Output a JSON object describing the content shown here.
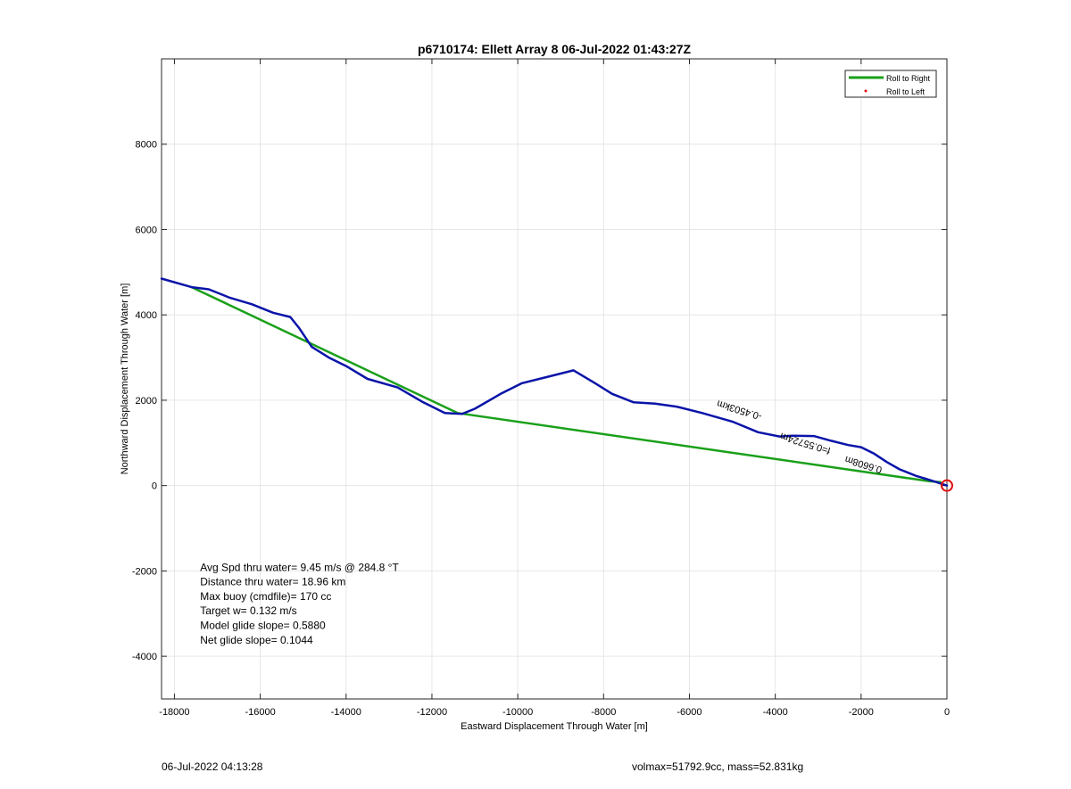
{
  "chart_data": {
    "type": "line",
    "title": "p6710174: Ellett Array 8 06-Jul-2022 01:43:27Z",
    "xlabel": "Eastward Displacement Through Water [m]",
    "ylabel": "Northward Displacement Through Water [m]",
    "xlim": [
      -18300,
      0
    ],
    "ylim": [
      -5000,
      10000
    ],
    "xticks": [
      -18000,
      -16000,
      -14000,
      -12000,
      -10000,
      -8000,
      -6000,
      -4000,
      -2000,
      0
    ],
    "yticks": [
      -4000,
      -2000,
      0,
      2000,
      4000,
      6000,
      8000
    ],
    "grid": true,
    "legend_position": "top-right",
    "legend": [
      {
        "label": "Roll to Right",
        "color": "#1aa01a",
        "style": "line"
      },
      {
        "label": "Roll to Left",
        "color": "#e01010",
        "style": "dot"
      }
    ],
    "series": [
      {
        "name": "Roll to Right",
        "color": "#1aa01a",
        "x": [
          -17600,
          -11400,
          -400,
          -150
        ],
        "y": [
          4650,
          1700,
          100,
          80
        ]
      },
      {
        "color": "#0a14a8",
        "x": [
          -18300,
          -17600,
          -17200,
          -16700,
          -16200,
          -15700,
          -15300,
          -15100,
          -14800,
          -14400,
          -14000,
          -13500,
          -12800,
          -12200,
          -11700,
          -11300,
          -11000,
          -10400,
          -9900,
          -9300,
          -8700,
          -8200,
          -7800,
          -7300,
          -6800,
          -6300,
          -5700,
          -5000,
          -4400,
          -3900,
          -3600,
          -3100,
          -2700,
          -2300,
          -2000,
          -1700,
          -1400,
          -1100,
          -900,
          -700,
          -500,
          -300,
          -150,
          0
        ],
        "y": [
          4850,
          4650,
          4600,
          4400,
          4250,
          4050,
          3950,
          3700,
          3250,
          3000,
          2800,
          2500,
          2300,
          1950,
          1700,
          1680,
          1800,
          2150,
          2400,
          2550,
          2700,
          2400,
          2150,
          1950,
          1920,
          1850,
          1700,
          1500,
          1250,
          1150,
          1170,
          1160,
          1050,
          950,
          900,
          750,
          550,
          380,
          300,
          220,
          160,
          100,
          50,
          0
        ]
      }
    ],
    "markers": [
      {
        "x": 0,
        "y": 0,
        "shape": "circle",
        "color": "#e01010"
      }
    ],
    "annotations": [
      {
        "text": "Avg Spd thru water=  9.45 m/s @ 284.8 °T",
        "x": -17400,
        "y": -2000
      },
      {
        "text": "Distance thru water= 18.96 km",
        "x": -17400,
        "y": -2340
      },
      {
        "text": "Max buoy (cmdfile)= 170 cc",
        "x": -17400,
        "y": -2680
      },
      {
        "text": "Target w= 0.132 m/s",
        "x": -17400,
        "y": -3020
      },
      {
        "text": "Model glide slope= 0.5880",
        "x": -17400,
        "y": -3360
      },
      {
        "text": "Net glide slope= 0.1044",
        "x": -17400,
        "y": -3700
      }
    ],
    "rotated_labels": [
      {
        "text": "-0.4503km",
        "x": -4300,
        "y": 1680,
        "angle": 197
      },
      {
        "text": "f=0.55724m",
        "x": -2700,
        "y": 880,
        "angle": 197
      },
      {
        "text": "0.6608m",
        "x": -1500,
        "y": 430,
        "angle": 197
      }
    ]
  },
  "footer": {
    "timestamp": "06-Jul-2022 04:13:28",
    "info": "volmax=51792.9cc, mass=52.831kg"
  }
}
